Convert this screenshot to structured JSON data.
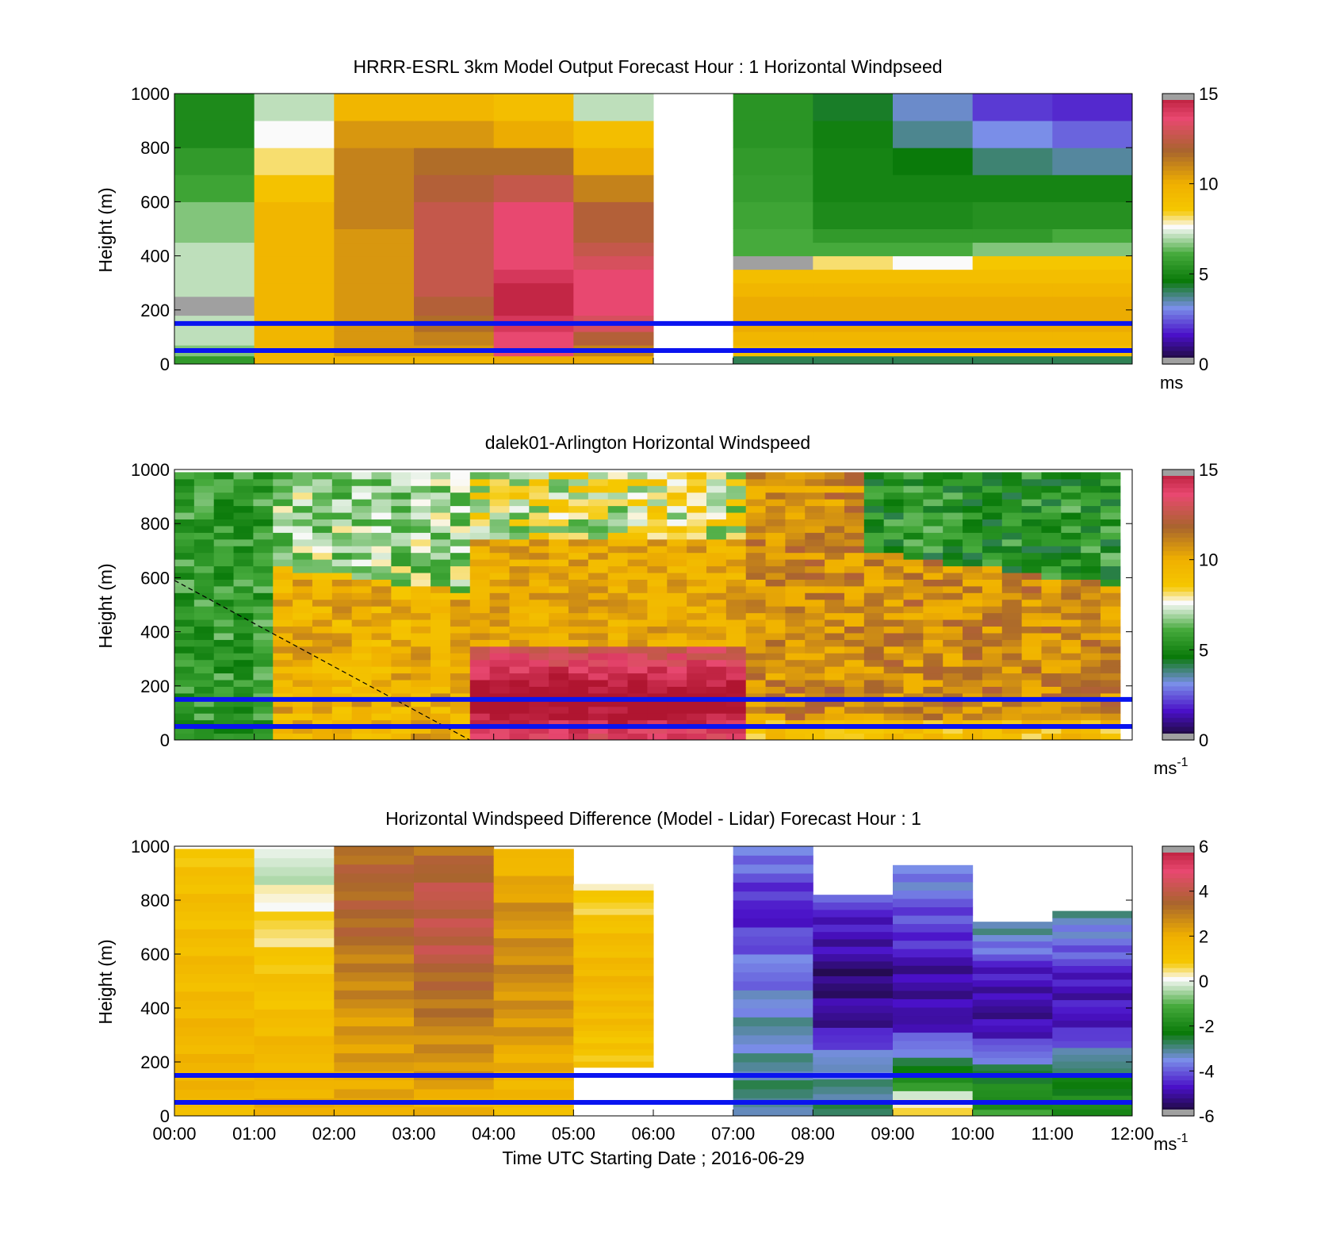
{
  "figure": {
    "xlabel": "Time UTC  Starting Date ; 2016-06-29",
    "x_tick_labels": [
      "00:00",
      "01:00",
      "02:00",
      "03:00",
      "04:00",
      "05:00",
      "06:00",
      "07:00",
      "08:00",
      "09:00",
      "10:00",
      "11:00",
      "12:00"
    ]
  },
  "colors": {
    "reference_lines": "#0a14f0",
    "colormap_stops": [
      "#1a0a2e",
      "#4a10c8",
      "#7a8ee8",
      "#0a7a0a",
      "#3aa83a",
      "#ffffff",
      "#f5c800",
      "#f0b000",
      "#a8652d",
      "#e84870",
      "#b01530"
    ],
    "out_of_range": "#a0a0a0"
  },
  "chart_data": [
    {
      "type": "heatmap",
      "title": "HRRR-ESRL 3km Model Output   Forecast Hour : 1 Horizontal Windpseed",
      "ylabel": "Height (m)",
      "ylim": [
        0,
        1000
      ],
      "y_ticks": [
        0,
        200,
        400,
        600,
        800,
        1000
      ],
      "x_range_hours": [
        0,
        12
      ],
      "colorbar": {
        "ticks": [
          0,
          5,
          10,
          15
        ],
        "label": "ms",
        "superscript": "",
        "range": [
          0,
          15
        ]
      },
      "reference_lines_m": [
        50,
        150
      ],
      "blank_hours": [
        6
      ],
      "cols": 12,
      "rows": [
        {
          "y0": 0,
          "y1": 30,
          "values": [
            5.5,
            9.5,
            9.5,
            9.5,
            10,
            10,
            null,
            4,
            4,
            4,
            4,
            4
          ]
        },
        {
          "y0": 30,
          "y1": 70,
          "values": [
            6.5,
            9.5,
            10.5,
            10.5,
            13.5,
            11,
            null,
            9,
            9,
            9,
            9,
            9
          ]
        },
        {
          "y0": 70,
          "y1": 120,
          "values": [
            7,
            9.5,
            10.5,
            11,
            13.5,
            12,
            null,
            9.5,
            9.5,
            9.5,
            9.5,
            9.5
          ]
        },
        {
          "y0": 120,
          "y1": 180,
          "values": [
            7,
            9.5,
            10.5,
            11.5,
            14,
            13,
            null,
            10,
            10,
            10,
            10,
            10
          ]
        },
        {
          "y0": 180,
          "y1": 250,
          "values": [
            -1,
            9.5,
            10.5,
            12,
            14.5,
            13.5,
            null,
            10,
            10,
            10,
            10,
            10
          ]
        },
        {
          "y0": 250,
          "y1": 300,
          "values": [
            7,
            9.5,
            10.5,
            12.5,
            14.5,
            13.5,
            null,
            9.5,
            9.5,
            9.5,
            9.5,
            9.5
          ]
        },
        {
          "y0": 300,
          "y1": 350,
          "values": [
            7,
            9.5,
            10.5,
            12.5,
            14,
            13.5,
            null,
            9,
            9,
            9,
            9,
            9
          ]
        },
        {
          "y0": 350,
          "y1": 400,
          "values": [
            7,
            9.5,
            10.5,
            12.5,
            13.5,
            13,
            null,
            -1,
            8,
            7.5,
            8.5,
            8.5
          ]
        },
        {
          "y0": 400,
          "y1": 450,
          "values": [
            7,
            9.5,
            10.5,
            12.5,
            13.5,
            12.5,
            null,
            6,
            6,
            6,
            6.5,
            6.5
          ]
        },
        {
          "y0": 450,
          "y1": 500,
          "values": [
            6.5,
            9.5,
            10.5,
            12.5,
            13.5,
            12,
            null,
            6,
            5.5,
            5.5,
            5.5,
            6
          ]
        },
        {
          "y0": 500,
          "y1": 600,
          "values": [
            6.5,
            9.5,
            11,
            12.5,
            13.5,
            12,
            null,
            5.8,
            5,
            5,
            5.2,
            5.2
          ]
        },
        {
          "y0": 600,
          "y1": 700,
          "values": [
            5.8,
            8.8,
            11,
            12,
            12.5,
            11,
            null,
            5.6,
            4.8,
            4.8,
            4.8,
            4.8
          ]
        },
        {
          "y0": 700,
          "y1": 800,
          "values": [
            5.5,
            8,
            11,
            11.5,
            11.5,
            10,
            null,
            5.5,
            4.8,
            4.5,
            3.8,
            3.5
          ]
        },
        {
          "y0": 800,
          "y1": 900,
          "values": [
            5,
            7.5,
            10.5,
            10.5,
            10,
            9,
            null,
            5.3,
            4.7,
            3.6,
            3,
            2.5
          ]
        },
        {
          "y0": 900,
          "y1": 1000,
          "values": [
            5,
            7,
            9.5,
            9.5,
            9,
            7,
            null,
            5.3,
            4.3,
            3.2,
            2,
            1.8
          ]
        }
      ]
    },
    {
      "type": "heatmap",
      "title": "dalek01-Arlington  Horizontal Windspeed",
      "ylabel": "Height (m)",
      "ylim": [
        0,
        1000
      ],
      "y_ticks": [
        0,
        200,
        400,
        600,
        800,
        1000
      ],
      "x_range_hours": [
        0,
        12
      ],
      "colorbar": {
        "ticks": [
          0,
          5,
          10,
          15
        ],
        "label": "ms",
        "superscript": "-1",
        "range": [
          0,
          15
        ]
      },
      "reference_lines_m": [
        50,
        150
      ],
      "dashed_line": {
        "from": [
          0,
          590
        ],
        "to": [
          3.7,
          0
        ]
      },
      "profile_columns_sample": 48,
      "profile_top_m": 990,
      "profile_end_hours": 11.85
    },
    {
      "type": "heatmap",
      "title": "Horizontal Windspeed Difference (Model - Lidar) Forecast Hour : 1",
      "ylabel": "Height (m)",
      "ylim": [
        0,
        1000
      ],
      "y_ticks": [
        0,
        200,
        400,
        600,
        800,
        1000
      ],
      "x_range_hours": [
        0,
        12
      ],
      "colorbar": {
        "ticks": [
          6,
          4,
          2,
          0,
          -2,
          -4,
          -6
        ],
        "label": "ms",
        "superscript": "-1",
        "range": [
          -6,
          6
        ]
      },
      "reference_lines_m": [
        50,
        150
      ],
      "cols": 12,
      "columns": [
        {
          "top": 990,
          "bottom": 0,
          "values": [
            1.5,
            1.7,
            1.5,
            1.3,
            1.2,
            1.0
          ]
        },
        {
          "top": 990,
          "bottom": 0,
          "values": [
            1.8,
            1.6,
            1.2,
            0.8,
            0.2,
            -0.5
          ]
        },
        {
          "top": 1000,
          "bottom": 0,
          "values": [
            2.0,
            2.2,
            2.5,
            3.0,
            3.5,
            3.2
          ]
        },
        {
          "top": 1000,
          "bottom": 0,
          "values": [
            1.8,
            2.5,
            3.0,
            3.8,
            4.0,
            3.2
          ]
        },
        {
          "top": 990,
          "bottom": 0,
          "values": [
            1.2,
            2.0,
            2.5,
            2.6,
            2.4,
            1.5
          ]
        },
        {
          "top": 860,
          "bottom": 180,
          "values": [
            0.8,
            1.2,
            1.5,
            1.5,
            1.0,
            0.4
          ]
        },
        {
          "top": 0,
          "bottom": 0,
          "values": []
        },
        {
          "top": 1000,
          "bottom": 0,
          "values": [
            -3.0,
            -3.2,
            -3.5,
            -4.0,
            -4.8,
            -3.5
          ]
        },
        {
          "top": 820,
          "bottom": 0,
          "values": [
            -3.0,
            -3.2,
            -5.0,
            -5.5,
            -5.0,
            -4.3
          ]
        },
        {
          "top": 930,
          "bottom": 0,
          "values": [
            0.8,
            -3.0,
            -5.2,
            -5.0,
            -4.2,
            -3.6
          ]
        },
        {
          "top": 720,
          "bottom": 0,
          "values": [
            -1.5,
            -2.5,
            -4.8,
            -5.2,
            -4.5,
            -3.0
          ]
        },
        {
          "top": 760,
          "bottom": 0,
          "values": [
            -2.0,
            -2.5,
            -4.6,
            -5.0,
            -4.2,
            -3.1
          ]
        }
      ]
    }
  ]
}
